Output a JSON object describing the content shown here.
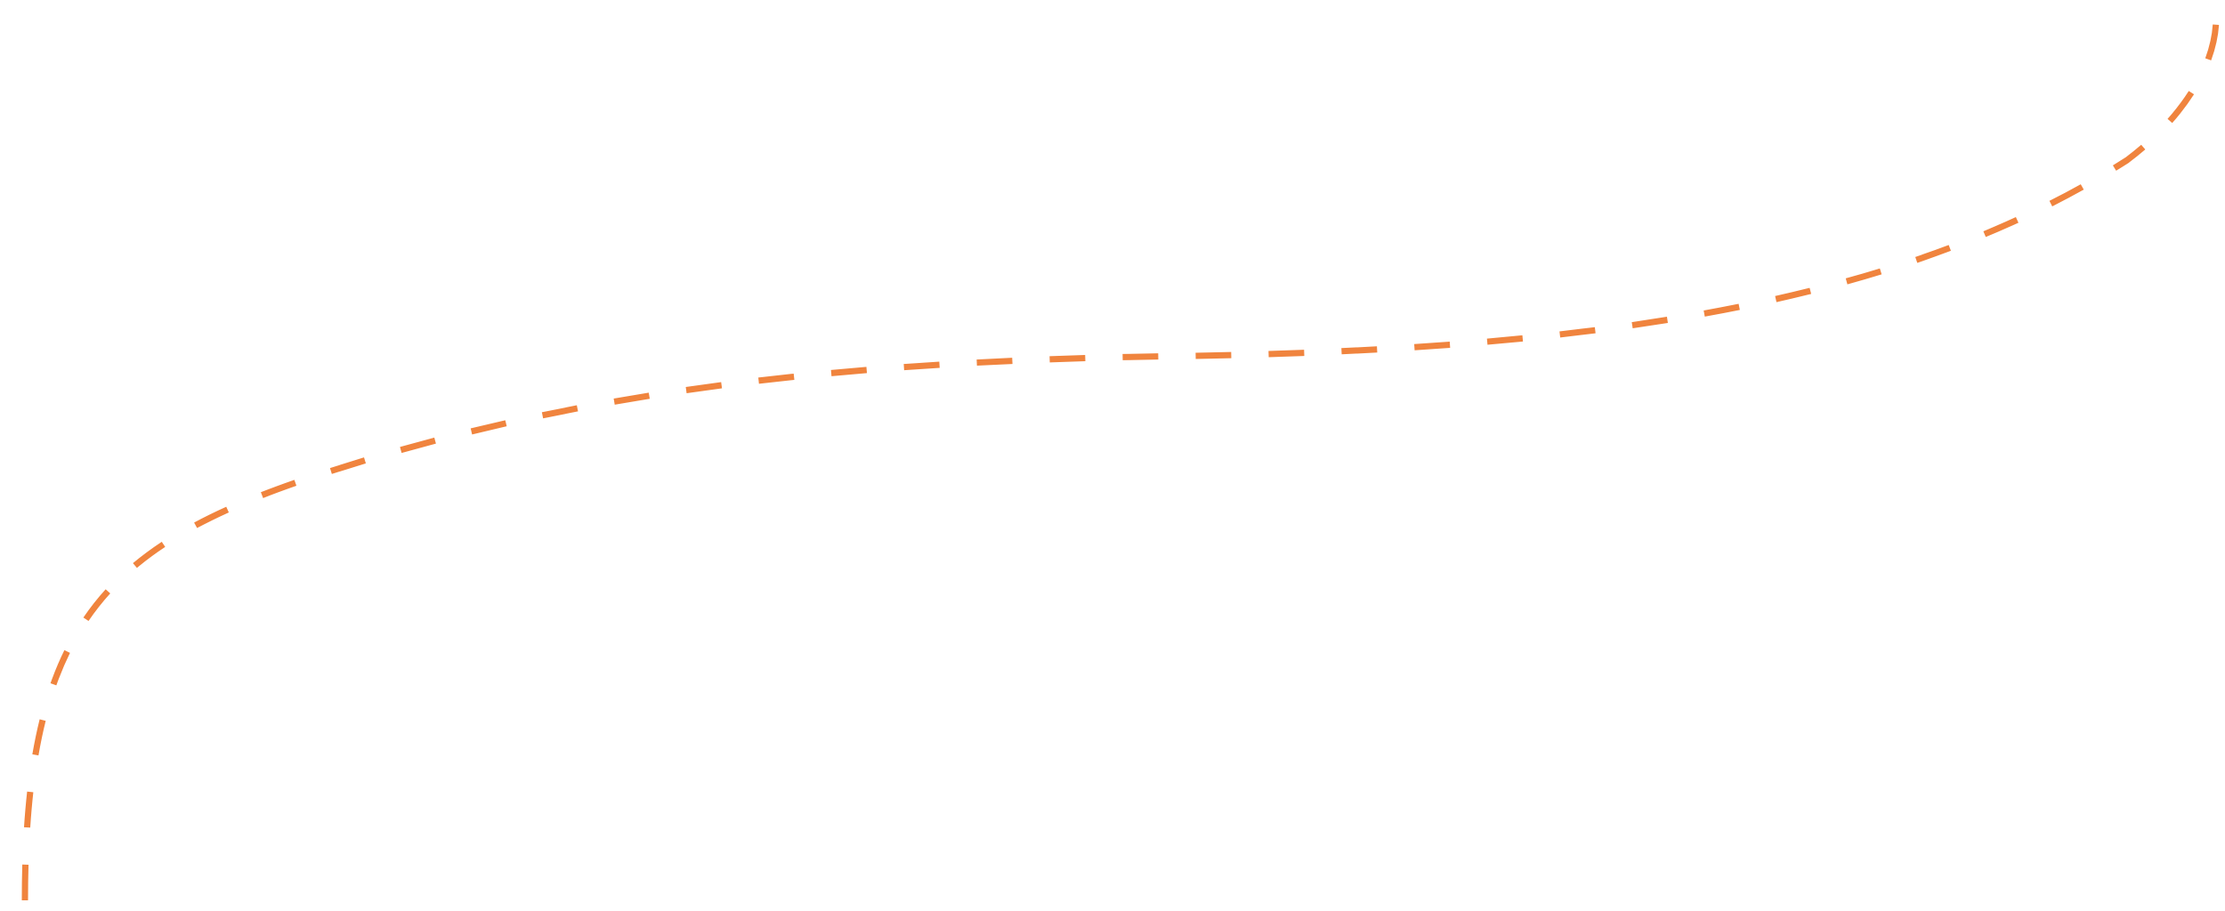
{
  "connector": {
    "stroke_color": "#F0843E",
    "background_color": "#FFFFFF",
    "style": "dashed",
    "shape": "s-curve"
  }
}
